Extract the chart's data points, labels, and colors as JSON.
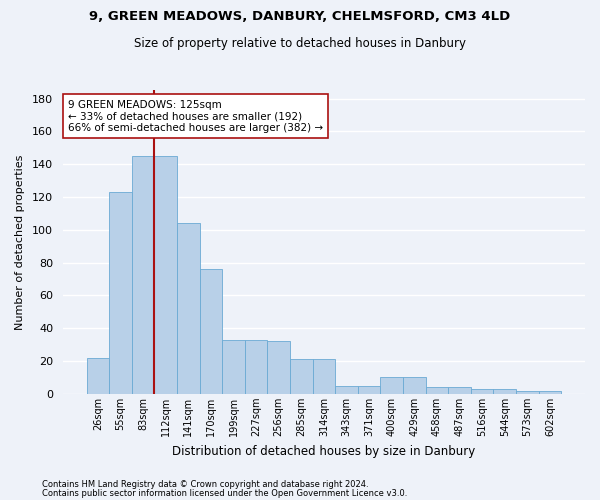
{
  "title1": "9, GREEN MEADOWS, DANBURY, CHELMSFORD, CM3 4LD",
  "title2": "Size of property relative to detached houses in Danbury",
  "xlabel": "Distribution of detached houses by size in Danbury",
  "ylabel": "Number of detached properties",
  "bar_labels": [
    "26sqm",
    "55sqm",
    "83sqm",
    "112sqm",
    "141sqm",
    "170sqm",
    "199sqm",
    "227sqm",
    "256sqm",
    "285sqm",
    "314sqm",
    "343sqm",
    "371sqm",
    "400sqm",
    "429sqm",
    "458sqm",
    "487sqm",
    "516sqm",
    "544sqm",
    "573sqm",
    "602sqm"
  ],
  "bar_heights": [
    22,
    123,
    145,
    145,
    104,
    76,
    33,
    33,
    32,
    21,
    21,
    5,
    5,
    10,
    10,
    4,
    4,
    3,
    3,
    2,
    2
  ],
  "bar_color": "#b8d0e8",
  "bar_edge_color": "#6aaad4",
  "vline_color": "#aa1111",
  "annotation_text": "9 GREEN MEADOWS: 125sqm\n← 33% of detached houses are smaller (192)\n66% of semi-detached houses are larger (382) →",
  "annotation_box_color": "#ffffff",
  "annotation_box_edge": "#aa1111",
  "ylim": [
    0,
    185
  ],
  "yticks": [
    0,
    20,
    40,
    60,
    80,
    100,
    120,
    140,
    160,
    180
  ],
  "footer1": "Contains HM Land Registry data © Crown copyright and database right 2024.",
  "footer2": "Contains public sector information licensed under the Open Government Licence v3.0.",
  "bg_color": "#eef2f9",
  "plot_bg_color": "#eef2f9",
  "grid_color": "#ffffff"
}
